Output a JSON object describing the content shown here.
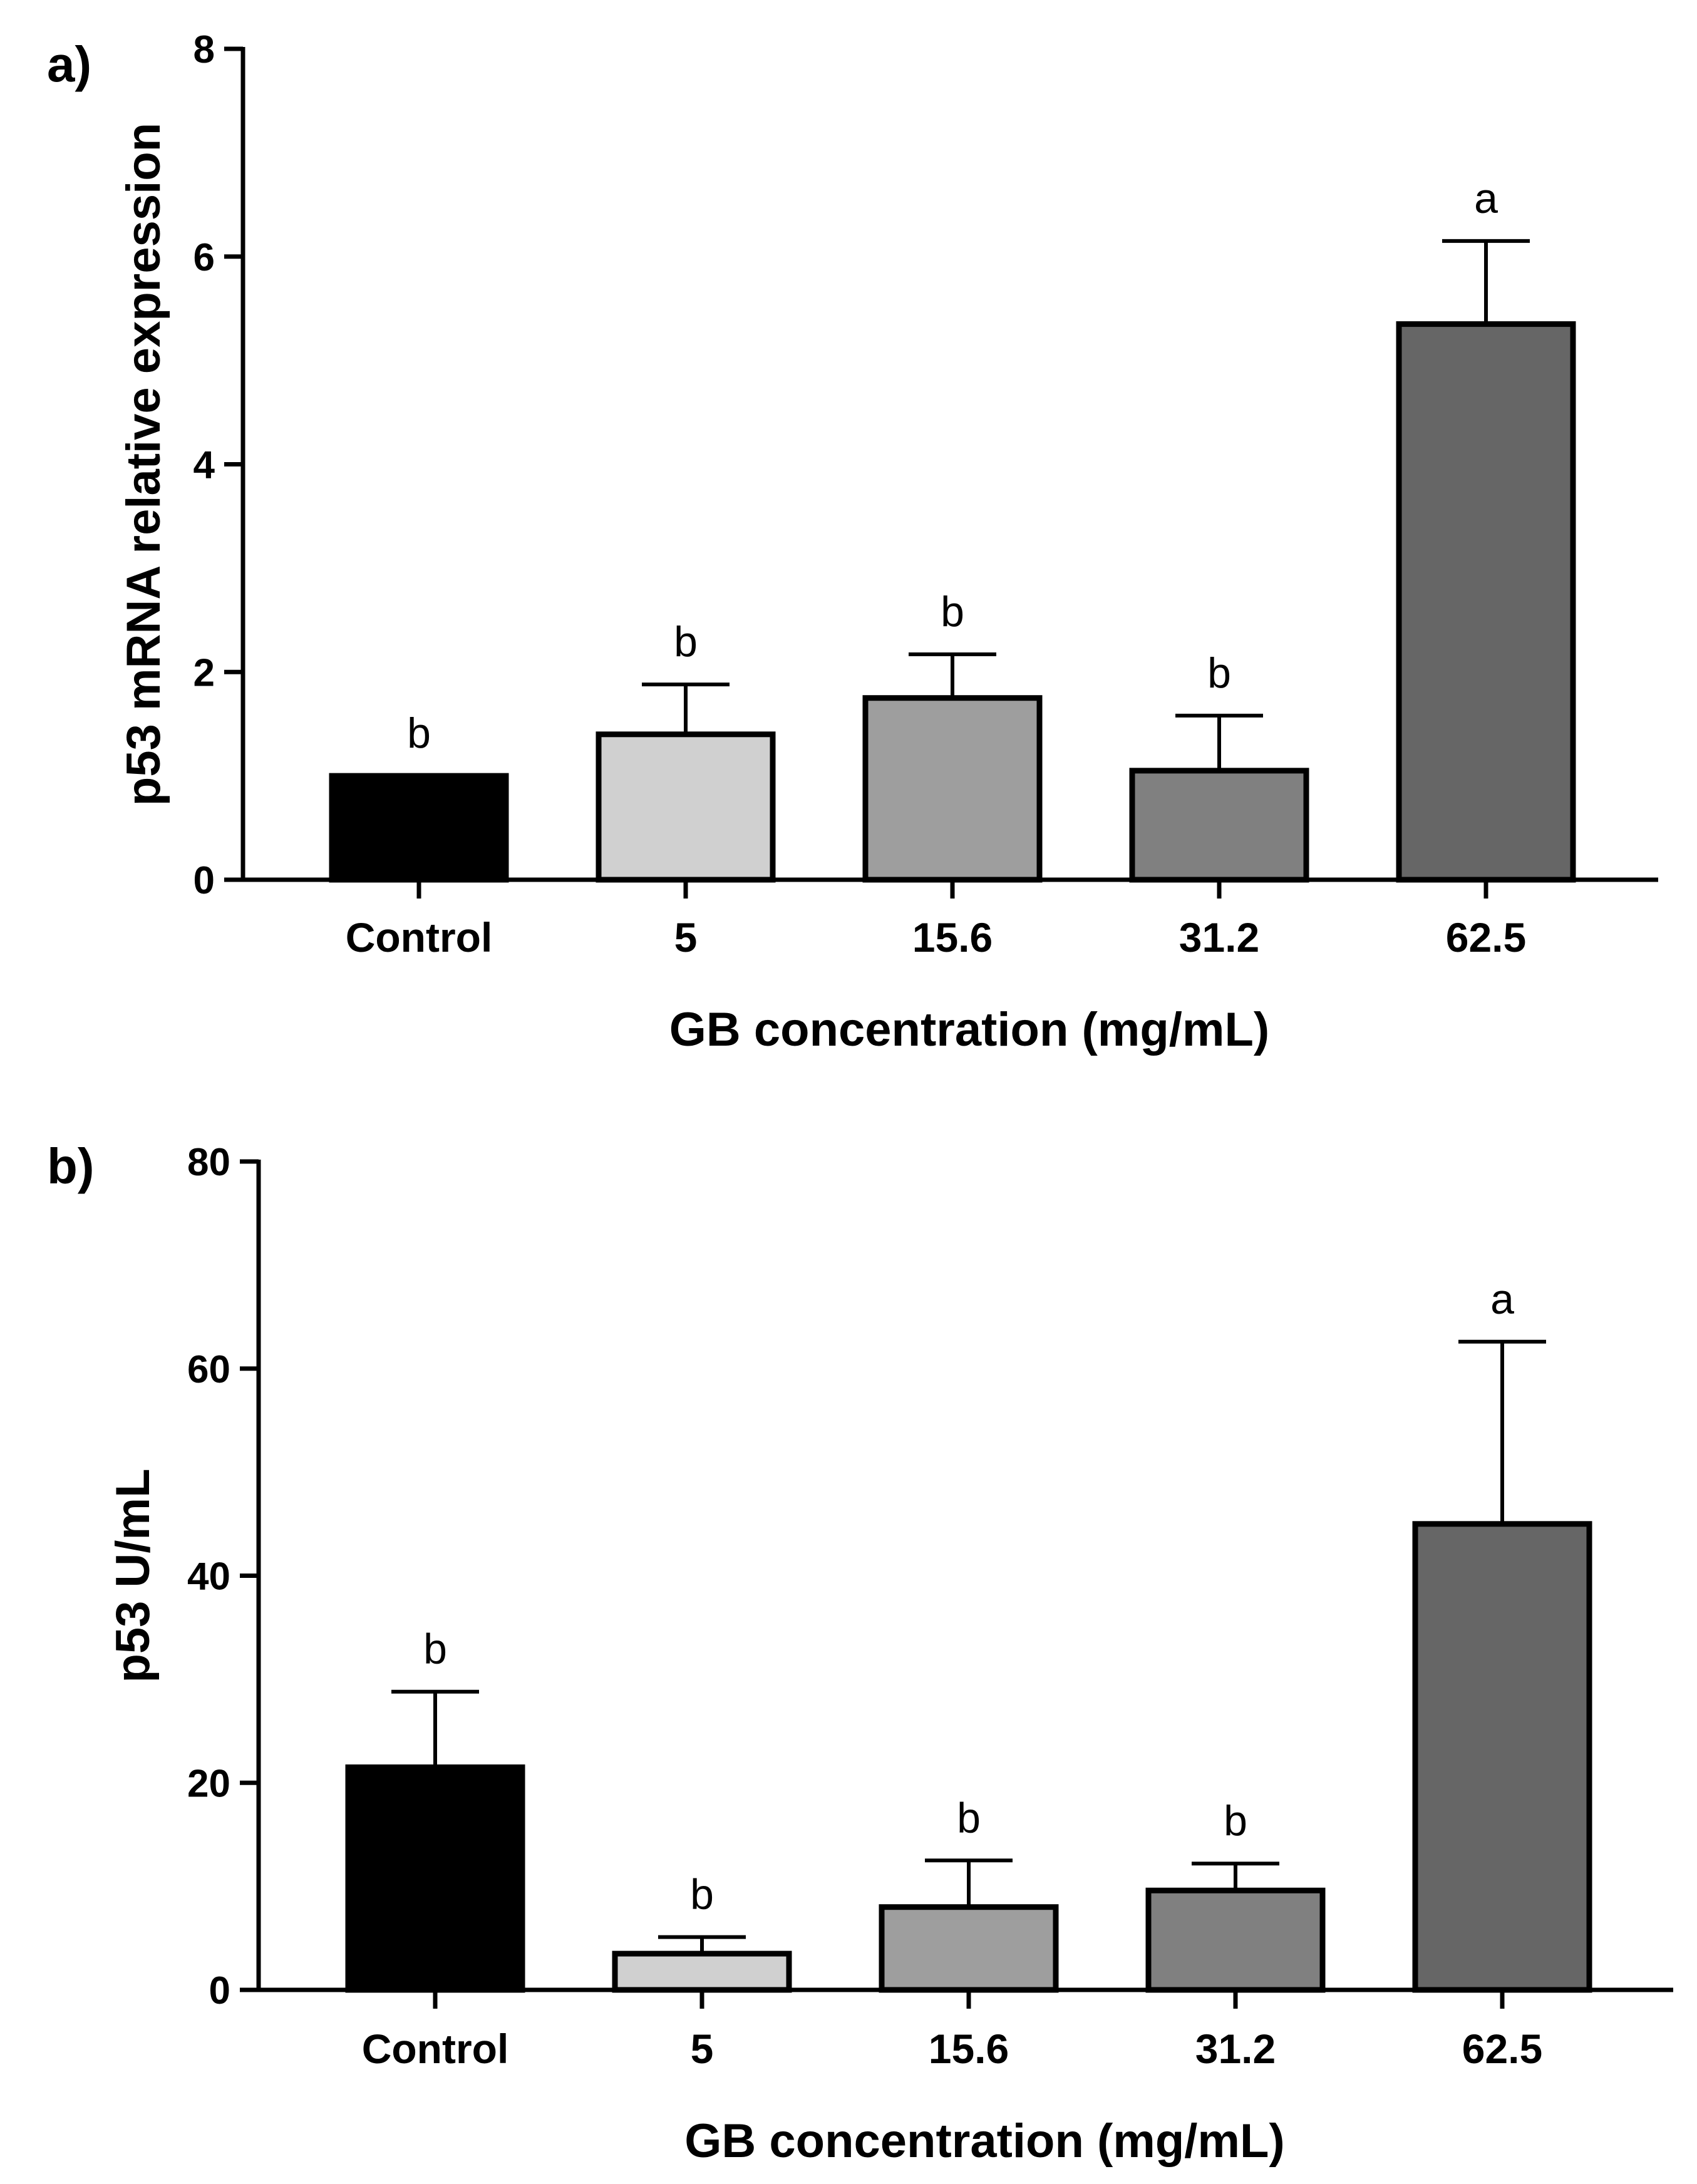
{
  "chart_data": [
    {
      "panel_label": "a)",
      "type": "bar",
      "categories": [
        "Control",
        "5",
        "15.6",
        "31.2",
        "62.5"
      ],
      "values": [
        1.0,
        1.4,
        1.75,
        1.05,
        5.35
      ],
      "errors": [
        0.0,
        0.48,
        0.42,
        0.53,
        0.8
      ],
      "significance": [
        "b",
        "b",
        "b",
        "b",
        "a"
      ],
      "bar_colors": [
        "#000000",
        "#d0d0d0",
        "#9e9e9e",
        "#808080",
        "#666666"
      ],
      "ylabel": "p53 mRNA relative expression",
      "xlabel": "GB concentration (mg/mL)",
      "ylim": [
        0,
        8
      ],
      "yticks": [
        "0",
        "2",
        "4",
        "6",
        "8"
      ]
    },
    {
      "panel_label": "b)",
      "type": "bar",
      "categories": [
        "Control",
        "5",
        "15.6",
        "31.2",
        "62.5"
      ],
      "values": [
        21.5,
        3.5,
        8.0,
        9.6,
        45.0
      ],
      "errors": [
        7.3,
        1.6,
        4.5,
        2.6,
        17.6
      ],
      "significance": [
        "b",
        "b",
        "b",
        "b",
        "a"
      ],
      "bar_colors": [
        "#000000",
        "#d0d0d0",
        "#9e9e9e",
        "#808080",
        "#666666"
      ],
      "ylabel": "p53 U/mL",
      "xlabel": "GB concentration (mg/mL)",
      "ylim": [
        0,
        80
      ],
      "yticks": [
        "0",
        "20",
        "40",
        "60",
        "80"
      ]
    }
  ]
}
